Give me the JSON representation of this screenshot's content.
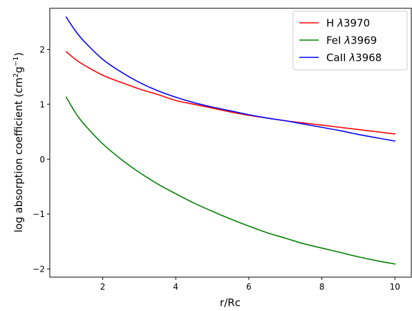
{
  "chart_data": {
    "type": "line",
    "xlabel": "r/Rc",
    "ylabel_parts": {
      "prefix": "log absorption coefficient (cm",
      "sup1": "2",
      "mid": "g",
      "sup2": "−1",
      "suffix": ")"
    },
    "xlim": [
      0.55,
      10.45
    ],
    "ylim": [
      -2.15,
      2.75
    ],
    "xticks": [
      2,
      4,
      6,
      8,
      10
    ],
    "xtick_labels": [
      "2",
      "4",
      "6",
      "8",
      "10"
    ],
    "yticks": [
      -2,
      -1,
      0,
      1,
      2
    ],
    "ytick_labels": [
      "−2",
      "−1",
      "0",
      "1",
      "2"
    ],
    "legend_position": "top-right",
    "series": [
      {
        "name": "H λ3970",
        "name_parts": {
          "pre": "H ",
          "sym": "λ",
          "num": "3970"
        },
        "color": "#ff0000",
        "points": [
          [
            1.0,
            1.96
          ],
          [
            1.25,
            1.82
          ],
          [
            1.5,
            1.71
          ],
          [
            2.0,
            1.53
          ],
          [
            2.5,
            1.4
          ],
          [
            3.0,
            1.28
          ],
          [
            3.5,
            1.18
          ],
          [
            4.0,
            1.07
          ],
          [
            4.5,
            1.0
          ],
          [
            5.0,
            0.93
          ],
          [
            5.5,
            0.86
          ],
          [
            6.0,
            0.8
          ],
          [
            6.5,
            0.75
          ],
          [
            7.0,
            0.7
          ],
          [
            7.5,
            0.66
          ],
          [
            8.0,
            0.62
          ],
          [
            8.5,
            0.58
          ],
          [
            9.0,
            0.54
          ],
          [
            9.5,
            0.5
          ],
          [
            10.0,
            0.46
          ]
        ]
      },
      {
        "name": "FeI λ3969",
        "name_parts": {
          "pre": "FeI ",
          "sym": "λ",
          "num": "3969"
        },
        "color": "#008000",
        "points": [
          [
            1.0,
            1.13
          ],
          [
            1.25,
            0.85
          ],
          [
            1.5,
            0.63
          ],
          [
            2.0,
            0.28
          ],
          [
            2.5,
            0.0
          ],
          [
            3.0,
            -0.24
          ],
          [
            3.5,
            -0.45
          ],
          [
            4.0,
            -0.63
          ],
          [
            4.5,
            -0.8
          ],
          [
            5.0,
            -0.95
          ],
          [
            5.5,
            -1.09
          ],
          [
            6.0,
            -1.22
          ],
          [
            6.5,
            -1.34
          ],
          [
            7.0,
            -1.44
          ],
          [
            7.5,
            -1.54
          ],
          [
            8.0,
            -1.62
          ],
          [
            8.5,
            -1.7
          ],
          [
            9.0,
            -1.78
          ],
          [
            9.5,
            -1.85
          ],
          [
            10.0,
            -1.91
          ]
        ]
      },
      {
        "name": "CaII λ3968",
        "name_parts": {
          "pre": "CaII ",
          "sym": "λ",
          "num": "3968"
        },
        "color": "#0000ff",
        "points": [
          [
            1.0,
            2.59
          ],
          [
            1.25,
            2.34
          ],
          [
            1.5,
            2.14
          ],
          [
            2.0,
            1.82
          ],
          [
            2.5,
            1.59
          ],
          [
            3.0,
            1.4
          ],
          [
            3.5,
            1.25
          ],
          [
            4.0,
            1.13
          ],
          [
            4.5,
            1.03
          ],
          [
            5.0,
            0.95
          ],
          [
            5.5,
            0.88
          ],
          [
            6.0,
            0.81
          ],
          [
            6.5,
            0.75
          ],
          [
            7.0,
            0.7
          ],
          [
            7.5,
            0.64
          ],
          [
            8.0,
            0.58
          ],
          [
            8.5,
            0.52
          ],
          [
            9.0,
            0.45
          ],
          [
            9.5,
            0.39
          ],
          [
            10.0,
            0.33
          ]
        ]
      }
    ]
  }
}
